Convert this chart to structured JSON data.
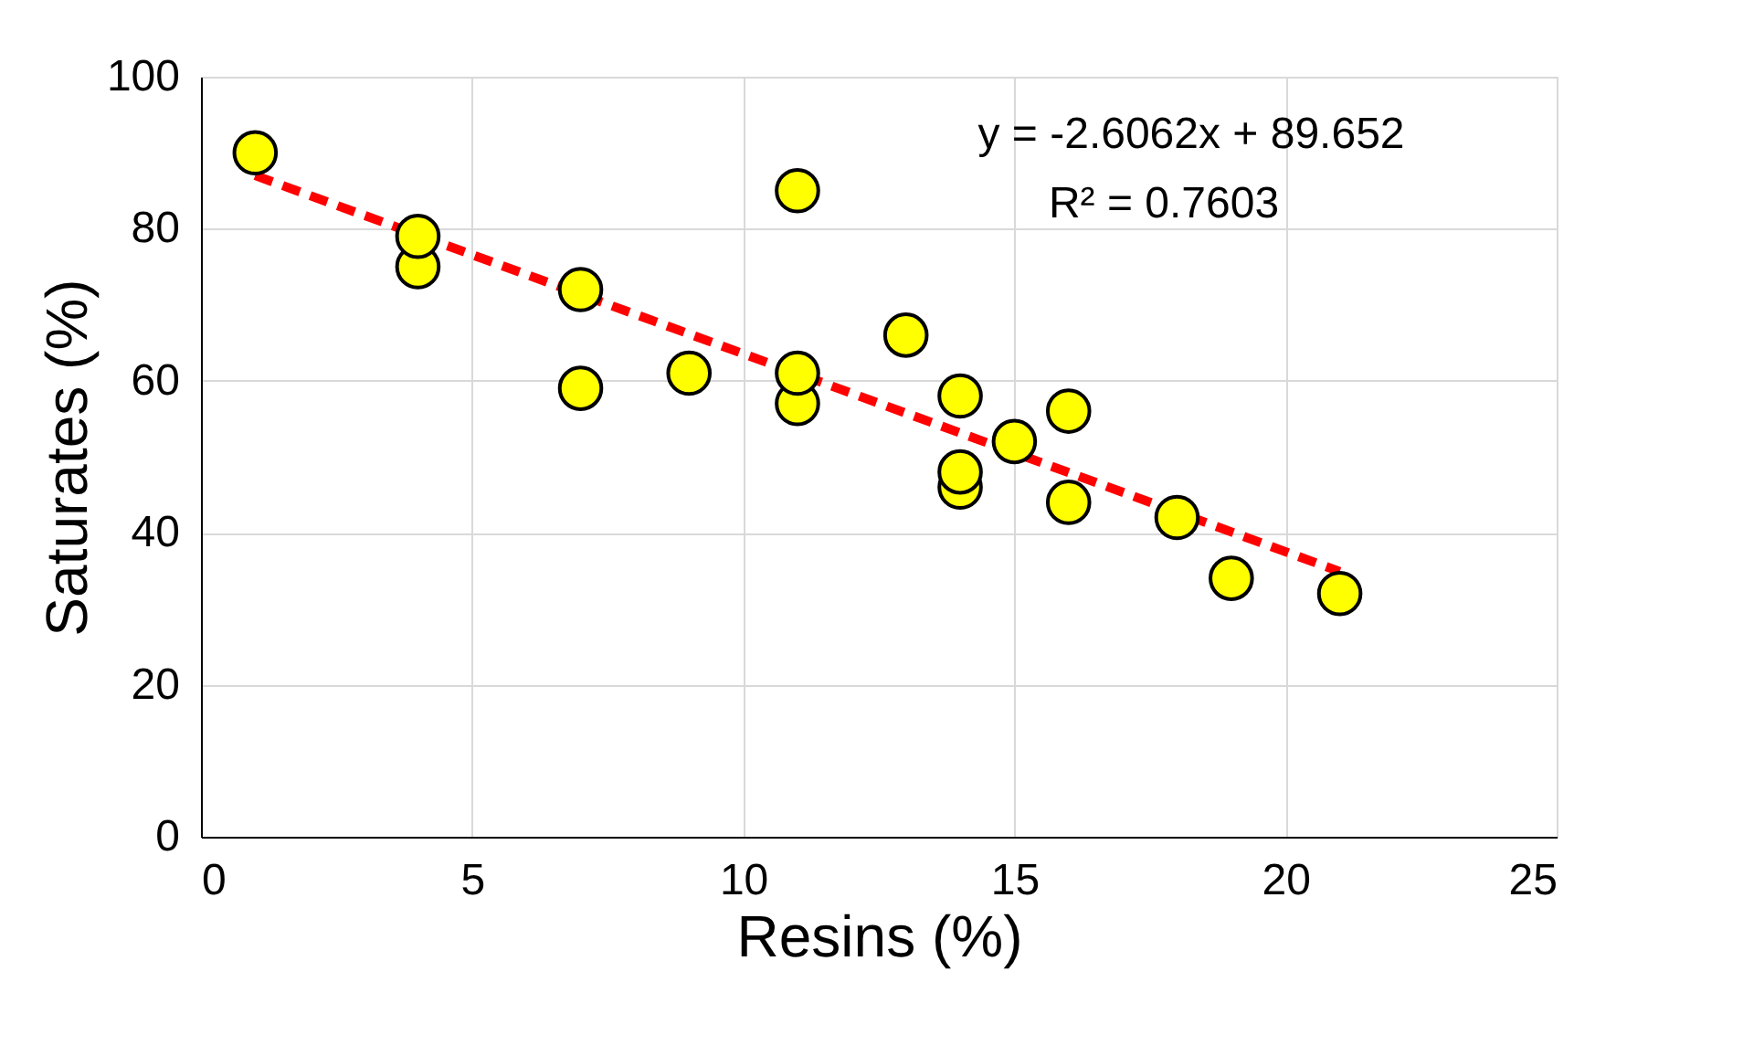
{
  "chart_data": {
    "type": "scatter",
    "xlabel": "Resins (%)",
    "ylabel": "Saturates (%)",
    "x": [
      1,
      4,
      4,
      7,
      7,
      9,
      11,
      11,
      11,
      13,
      14,
      14,
      14,
      15,
      16,
      16,
      18,
      19,
      21
    ],
    "series": [
      {
        "color": "#ffff00",
        "marker": "circle",
        "values": [
          90,
          79,
          75,
          72,
          59,
          61,
          85,
          61,
          57,
          66,
          58,
          48,
          46,
          52,
          56,
          44,
          42,
          34,
          32
        ]
      },
      {
        "type": "line",
        "color": "#ff0000",
        "line_style": "dashed",
        "x": [
          1,
          21
        ],
        "values": [
          87.0,
          34.9
        ]
      }
    ],
    "xlim": [
      0,
      25
    ],
    "xticks": [
      0,
      5,
      10,
      15,
      20,
      25
    ],
    "ylim": [
      0,
      100
    ],
    "yticks": [
      0,
      20,
      40,
      60,
      80,
      100
    ],
    "grid": true,
    "annotations": [
      "y = -2.6062x + 89.652",
      "R² = 0.7603"
    ]
  }
}
